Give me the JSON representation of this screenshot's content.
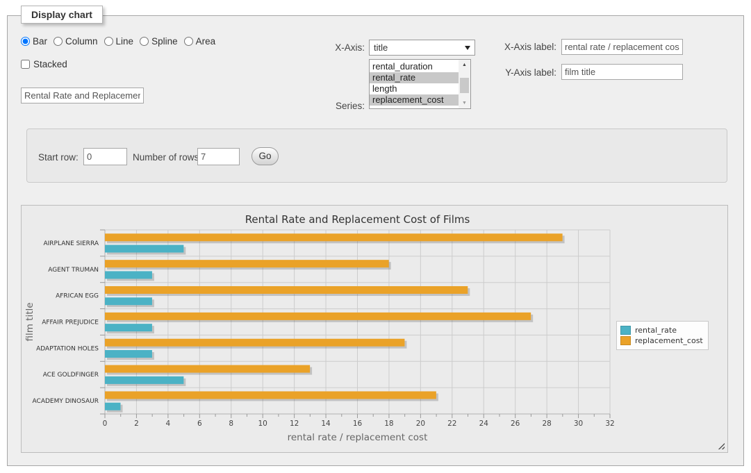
{
  "panel": {
    "title": "Display chart"
  },
  "controls": {
    "types": [
      {
        "label": "Bar",
        "selected": true
      },
      {
        "label": "Column",
        "selected": false
      },
      {
        "label": "Line",
        "selected": false
      },
      {
        "label": "Spline",
        "selected": false
      },
      {
        "label": "Area",
        "selected": false
      }
    ],
    "stacked": {
      "label": "Stacked",
      "checked": false
    },
    "chart_title_input": {
      "value": "Rental Rate and Replacement Cost of Films"
    },
    "x_axis": {
      "label": "X-Axis:",
      "selected_option": "title"
    },
    "series": {
      "label": "Series:",
      "options": [
        {
          "label": "rental_duration",
          "selected": false
        },
        {
          "label": "rental_rate",
          "selected": true
        },
        {
          "label": "length",
          "selected": false
        },
        {
          "label": "replacement_cost",
          "selected": true
        }
      ]
    },
    "x_axis_label": {
      "label": "X-Axis label:",
      "value": "rental rate / replacement cost"
    },
    "y_axis_label": {
      "label": "Y-Axis label:",
      "value": "film title"
    }
  },
  "row_controls": {
    "start_row": {
      "label": "Start row:",
      "value": "0"
    },
    "number_of_rows": {
      "label": "Number of rows:",
      "value": "7"
    },
    "go_button": "Go"
  },
  "icons": {
    "scroll_up_arrow": "▲",
    "scroll_down_arrow": "▼"
  },
  "chart_data": {
    "type": "bar",
    "orientation": "horizontal",
    "title": "Rental Rate and Replacement Cost of Films",
    "categories": [
      "AIRPLANE SIERRA",
      "AGENT TRUMAN",
      "AFRICAN EGG",
      "AFFAIR PREJUDICE",
      "ADAPTATION HOLES",
      "ACE GOLDFINGER",
      "ACADEMY DINOSAUR"
    ],
    "series": [
      {
        "name": "rental_rate",
        "color": "#4bb2c5",
        "values": [
          4.99,
          2.99,
          2.99,
          2.99,
          2.99,
          4.99,
          0.99
        ]
      },
      {
        "name": "replacement_cost",
        "color": "#eaa228",
        "values": [
          28.99,
          17.99,
          22.99,
          26.99,
          18.99,
          12.99,
          20.99
        ]
      }
    ],
    "xlabel": "rental rate / replacement cost",
    "ylabel": "film title",
    "xlim": [
      0,
      32
    ],
    "xtick_step": 2,
    "minor_tick_step": 1,
    "grid": true,
    "legend_position": "right",
    "plot_background": "#ebebeb",
    "gridline_color": "#cccccc"
  }
}
